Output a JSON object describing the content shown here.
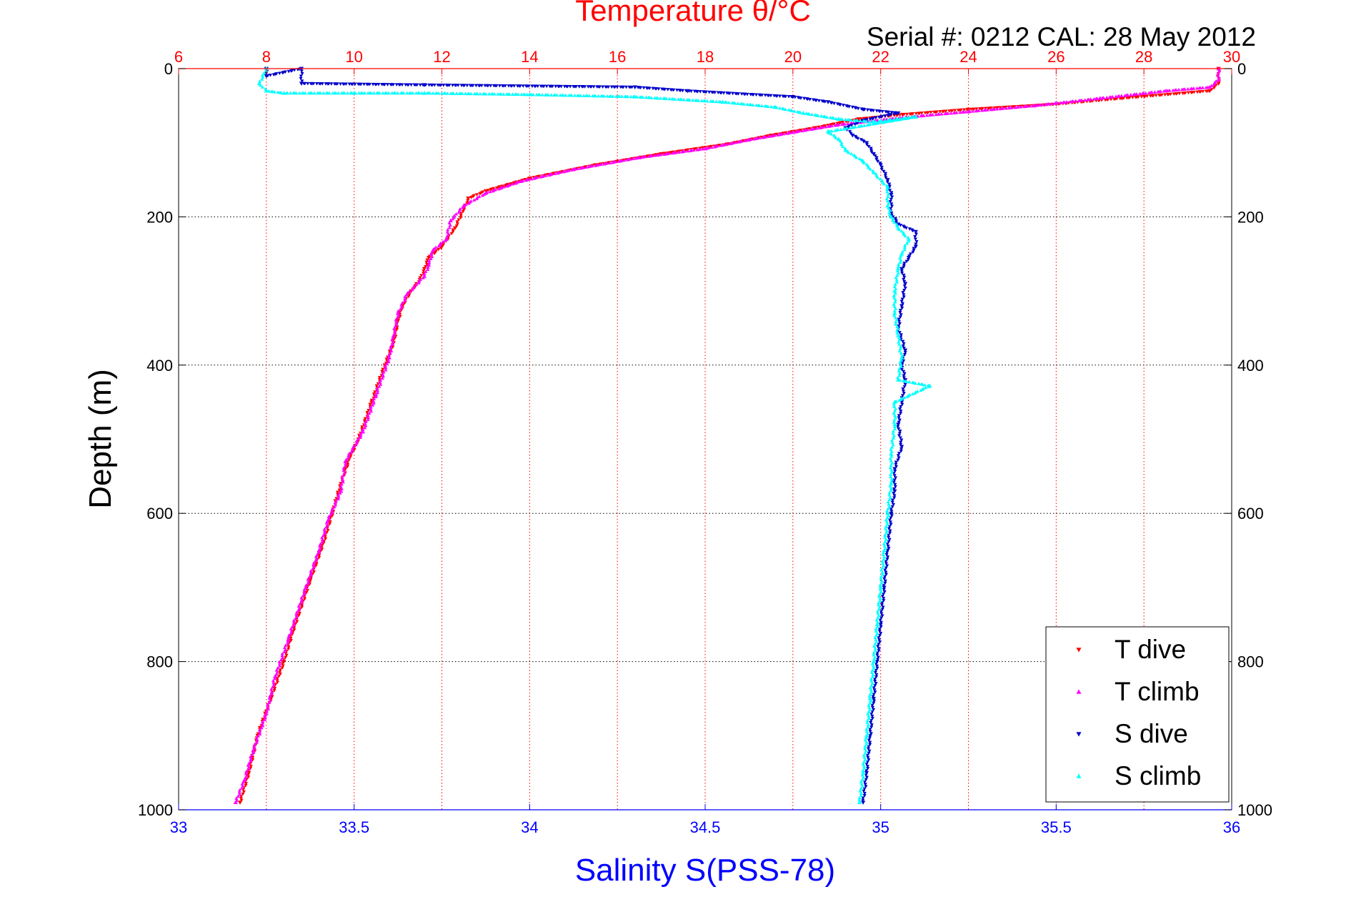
{
  "chart_data": {
    "type": "scatter",
    "title": "Temperature θ/°C",
    "subtitle": "Serial #: 0212  CAL: 28 May 2012",
    "xlabel": "Salinity S(PSS-78)",
    "ylabel": "Depth (m)",
    "x_top_label": "Temperature θ/°C",
    "ylim": [
      0,
      1000
    ],
    "y_reversed": true,
    "xlim_salinity": [
      33,
      36
    ],
    "xlim_temperature": [
      6,
      30
    ],
    "grid": true,
    "legend_position": "bottom-right",
    "y_ticks": [
      0,
      200,
      400,
      600,
      800,
      1000
    ],
    "x_ticks_salinity": [
      33,
      33.5,
      34,
      34.5,
      35,
      35.5,
      36
    ],
    "x_ticks_temperature": [
      6,
      8,
      10,
      12,
      14,
      16,
      18,
      20,
      22,
      24,
      26,
      28,
      30
    ],
    "colors": {
      "temperature_axis": "#ff0000",
      "salinity_axis": "#0000ff",
      "t_dive": "#ff0000",
      "t_climb": "#ff00ff",
      "s_dive": "#0000cc",
      "s_climb": "#00ffff"
    },
    "series": [
      {
        "name": "T dive",
        "axis": "temperature",
        "marker": "triangle-down",
        "points": [
          [
            29.7,
            0
          ],
          [
            29.7,
            20
          ],
          [
            29.5,
            30
          ],
          [
            27.5,
            40
          ],
          [
            26.0,
            48
          ],
          [
            24.0,
            55
          ],
          [
            22.5,
            62
          ],
          [
            21.5,
            68
          ],
          [
            20.5,
            80
          ],
          [
            19.5,
            90
          ],
          [
            18.5,
            102
          ],
          [
            17.0,
            115
          ],
          [
            15.5,
            130
          ],
          [
            14.0,
            148
          ],
          [
            13.0,
            165
          ],
          [
            12.6,
            175
          ],
          [
            12.5,
            190
          ],
          [
            12.3,
            215
          ],
          [
            12.0,
            240
          ],
          [
            11.7,
            255
          ],
          [
            11.6,
            270
          ],
          [
            11.5,
            285
          ],
          [
            11.3,
            300
          ],
          [
            11.1,
            320
          ],
          [
            11.0,
            340
          ],
          [
            10.9,
            370
          ],
          [
            10.7,
            400
          ],
          [
            10.4,
            450
          ],
          [
            10.1,
            500
          ],
          [
            9.9,
            525
          ],
          [
            9.7,
            560
          ],
          [
            9.5,
            600
          ],
          [
            9.3,
            640
          ],
          [
            9.0,
            690
          ],
          [
            8.6,
            760
          ],
          [
            8.4,
            800
          ],
          [
            8.1,
            850
          ],
          [
            7.8,
            900
          ],
          [
            7.6,
            950
          ],
          [
            7.4,
            990
          ]
        ]
      },
      {
        "name": "T climb",
        "axis": "temperature",
        "marker": "triangle-up",
        "points": [
          [
            29.7,
            0
          ],
          [
            29.7,
            15
          ],
          [
            29.5,
            25
          ],
          [
            28.5,
            30
          ],
          [
            27.0,
            40
          ],
          [
            25.5,
            50
          ],
          [
            24.0,
            58
          ],
          [
            22.5,
            66
          ],
          [
            21.0,
            76
          ],
          [
            20.0,
            86
          ],
          [
            19.0,
            96
          ],
          [
            18.0,
            108
          ],
          [
            16.5,
            120
          ],
          [
            15.0,
            136
          ],
          [
            13.8,
            152
          ],
          [
            13.0,
            168
          ],
          [
            12.5,
            185
          ],
          [
            12.2,
            205
          ],
          [
            12.1,
            230
          ],
          [
            11.8,
            245
          ],
          [
            11.7,
            265
          ],
          [
            11.6,
            280
          ],
          [
            11.2,
            305
          ],
          [
            11.0,
            330
          ],
          [
            10.9,
            360
          ],
          [
            10.8,
            390
          ],
          [
            10.5,
            440
          ],
          [
            10.2,
            490
          ],
          [
            9.8,
            530
          ],
          [
            9.7,
            570
          ],
          [
            9.4,
            610
          ],
          [
            9.2,
            650
          ],
          [
            8.9,
            700
          ],
          [
            8.5,
            770
          ],
          [
            8.2,
            820
          ],
          [
            8.0,
            870
          ],
          [
            7.7,
            920
          ],
          [
            7.5,
            960
          ],
          [
            7.3,
            990
          ]
        ]
      },
      {
        "name": "S dive",
        "axis": "salinity",
        "marker": "triangle-down",
        "points": [
          [
            33.25,
            0
          ],
          [
            33.25,
            10
          ],
          [
            33.35,
            0
          ],
          [
            33.35,
            20
          ],
          [
            33.7,
            22
          ],
          [
            34.3,
            25
          ],
          [
            34.45,
            30
          ],
          [
            34.75,
            38
          ],
          [
            34.85,
            45
          ],
          [
            34.95,
            55
          ],
          [
            35.05,
            60
          ],
          [
            34.95,
            70
          ],
          [
            34.9,
            80
          ],
          [
            34.92,
            90
          ],
          [
            34.96,
            100
          ],
          [
            34.98,
            115
          ],
          [
            35.0,
            130
          ],
          [
            35.02,
            150
          ],
          [
            35.03,
            170
          ],
          [
            35.03,
            195
          ],
          [
            35.05,
            210
          ],
          [
            35.1,
            220
          ],
          [
            35.1,
            240
          ],
          [
            35.08,
            255
          ],
          [
            35.06,
            270
          ],
          [
            35.07,
            290
          ],
          [
            35.06,
            320
          ],
          [
            35.05,
            350
          ],
          [
            35.07,
            380
          ],
          [
            35.06,
            400
          ],
          [
            35.07,
            420
          ],
          [
            35.06,
            450
          ],
          [
            35.05,
            480
          ],
          [
            35.06,
            510
          ],
          [
            35.04,
            540
          ],
          [
            35.04,
            570
          ],
          [
            35.03,
            600
          ],
          [
            35.02,
            650
          ],
          [
            35.01,
            700
          ],
          [
            35.0,
            750
          ],
          [
            34.99,
            800
          ],
          [
            34.98,
            850
          ],
          [
            34.97,
            900
          ],
          [
            34.96,
            950
          ],
          [
            34.95,
            990
          ]
        ]
      },
      {
        "name": "S climb",
        "axis": "salinity",
        "marker": "triangle-up",
        "points": [
          [
            33.25,
            0
          ],
          [
            33.23,
            20
          ],
          [
            33.25,
            30
          ],
          [
            33.3,
            33
          ],
          [
            33.5,
            33
          ],
          [
            33.7,
            33
          ],
          [
            34.0,
            35
          ],
          [
            34.3,
            38
          ],
          [
            34.55,
            45
          ],
          [
            34.7,
            52
          ],
          [
            34.78,
            60
          ],
          [
            34.88,
            68
          ],
          [
            34.98,
            72
          ],
          [
            35.1,
            65
          ],
          [
            34.85,
            85
          ],
          [
            34.88,
            95
          ],
          [
            34.9,
            110
          ],
          [
            34.95,
            125
          ],
          [
            34.98,
            140
          ],
          [
            35.02,
            160
          ],
          [
            35.02,
            185
          ],
          [
            35.03,
            200
          ],
          [
            35.05,
            215
          ],
          [
            35.08,
            230
          ],
          [
            35.06,
            250
          ],
          [
            35.05,
            270
          ],
          [
            35.04,
            300
          ],
          [
            35.04,
            330
          ],
          [
            35.05,
            360
          ],
          [
            35.06,
            390
          ],
          [
            35.05,
            420
          ],
          [
            35.14,
            428
          ],
          [
            35.04,
            450
          ],
          [
            35.04,
            480
          ],
          [
            35.03,
            520
          ],
          [
            35.03,
            560
          ],
          [
            35.02,
            600
          ],
          [
            35.01,
            650
          ],
          [
            35.0,
            700
          ],
          [
            34.99,
            750
          ],
          [
            34.98,
            800
          ],
          [
            34.97,
            850
          ],
          [
            34.96,
            900
          ],
          [
            34.95,
            950
          ],
          [
            34.94,
            990
          ]
        ]
      }
    ]
  }
}
